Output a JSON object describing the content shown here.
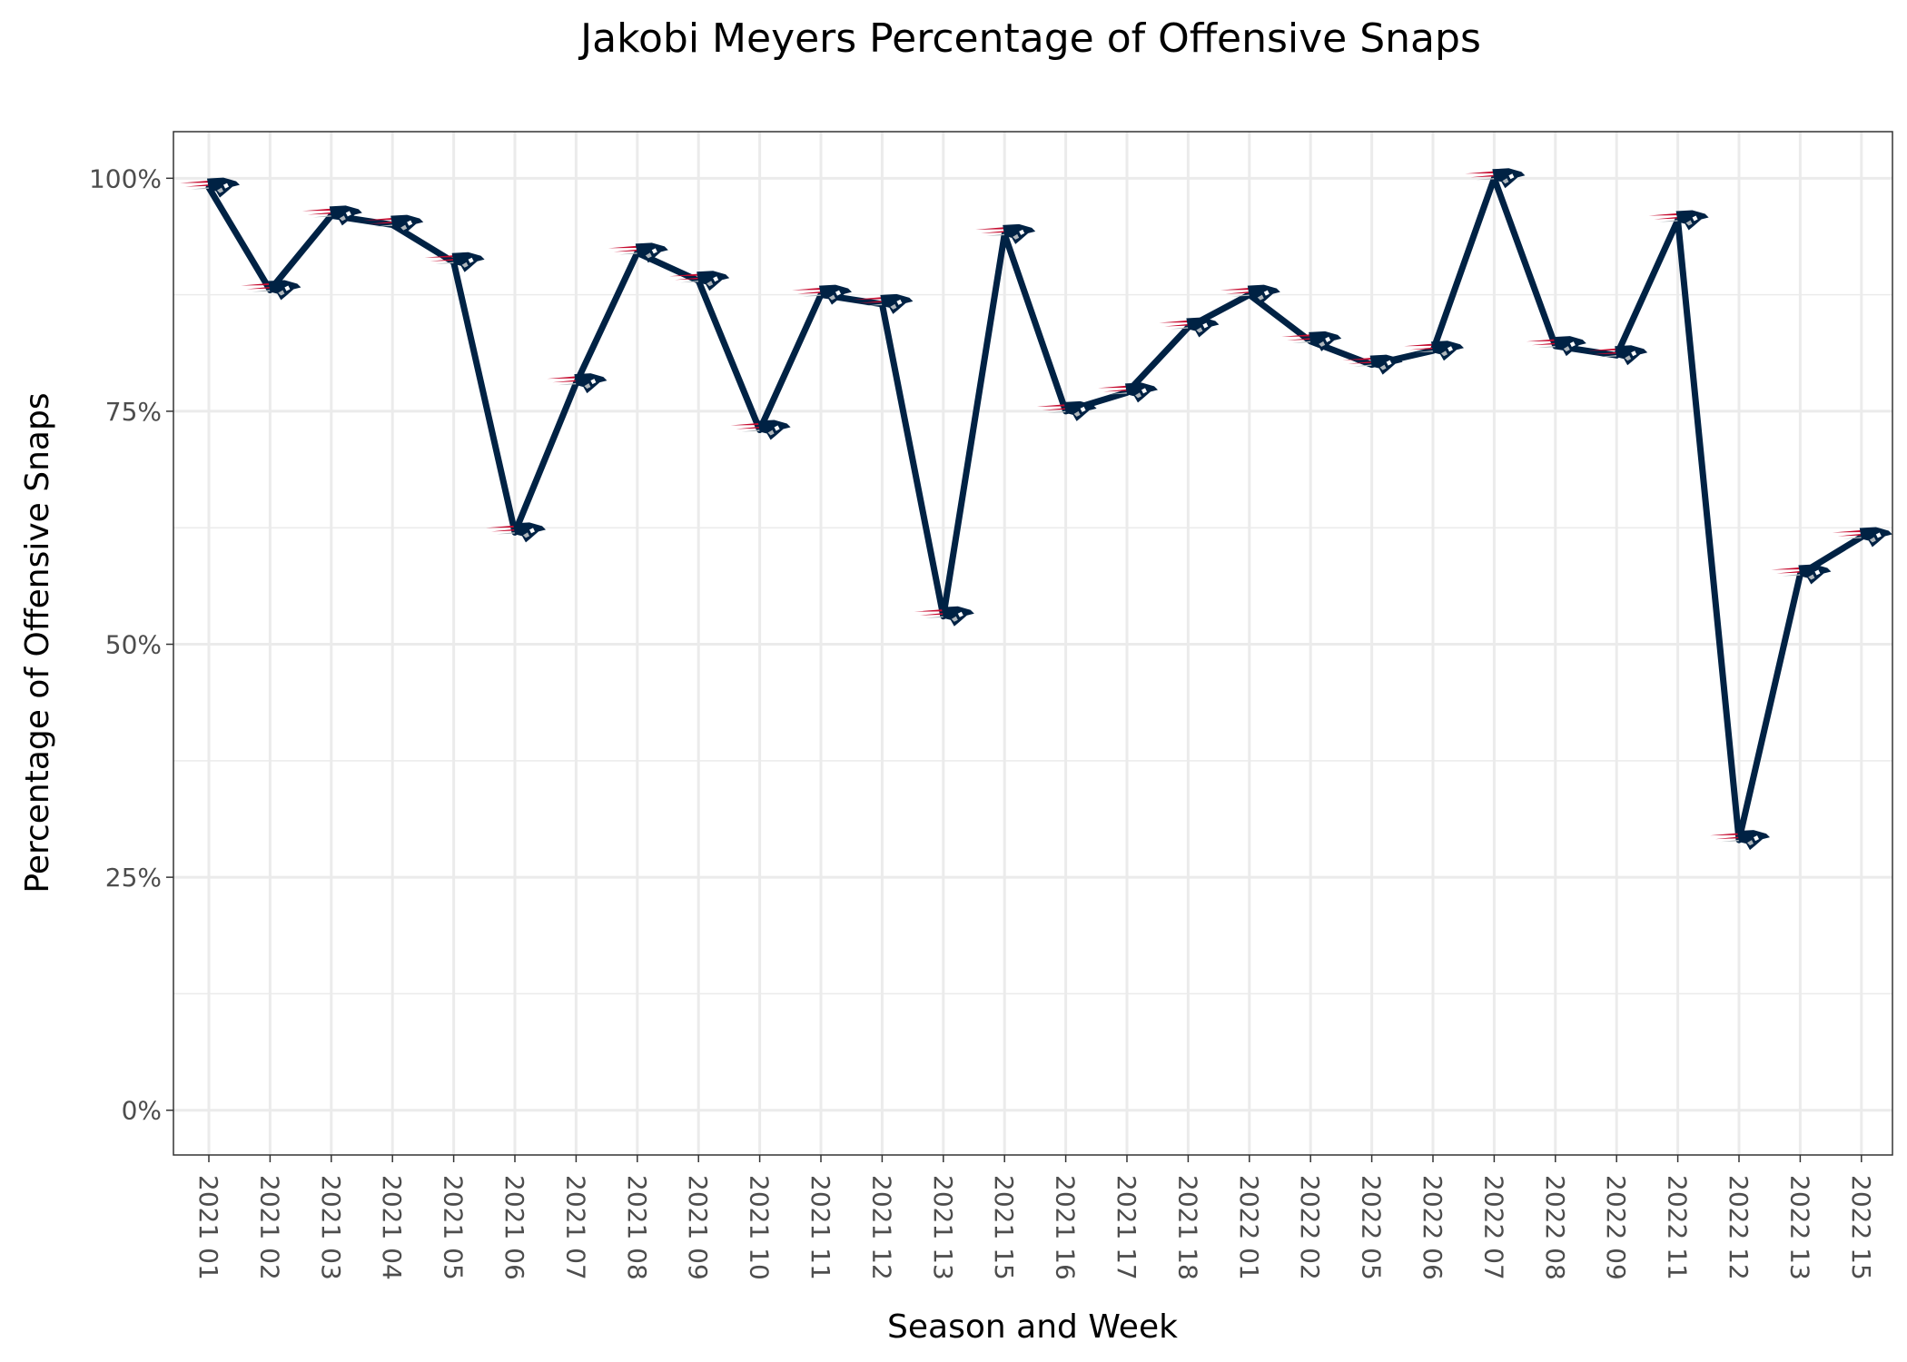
{
  "chart_data": {
    "type": "line",
    "title": "Jakobi Meyers Percentage of Offensive Snaps",
    "xlabel": "Season and Week",
    "ylabel": "Percentage of Offensive Snaps",
    "categories": [
      "2021 01",
      "2021 02",
      "2021 03",
      "2021 04",
      "2021 05",
      "2021 06",
      "2021 07",
      "2021 08",
      "2021 09",
      "2021 10",
      "2021 11",
      "2021 12",
      "2021 13",
      "2021 15",
      "2021 16",
      "2021 17",
      "2021 18",
      "2022 01",
      "2022 02",
      "2022 05",
      "2022 06",
      "2022 07",
      "2022 08",
      "2022 09",
      "2022 11",
      "2022 12",
      "2022 13",
      "2022 15"
    ],
    "series": [
      {
        "values": [
          0.99,
          0.88,
          0.96,
          0.95,
          0.91,
          0.62,
          0.78,
          0.92,
          0.89,
          0.73,
          0.875,
          0.865,
          0.53,
          0.94,
          0.75,
          0.77,
          0.84,
          0.875,
          0.825,
          0.8,
          0.815,
          1.0,
          0.82,
          0.81,
          0.955,
          0.29,
          0.575,
          0.615
        ],
        "color": "#002244"
      }
    ],
    "ylim": [
      -0.048,
      1.05
    ],
    "yticks": [
      0,
      0.25,
      0.5,
      0.75,
      1.0
    ],
    "ytick_labels": [
      "0%",
      "25%",
      "50%",
      "75%",
      "100%"
    ],
    "grid": true,
    "legend": "none",
    "marker_icon": "patriots-logo-icon",
    "colors": {
      "navy": "#002244",
      "red": "#C60C30",
      "silver": "#B0B7BC"
    }
  }
}
